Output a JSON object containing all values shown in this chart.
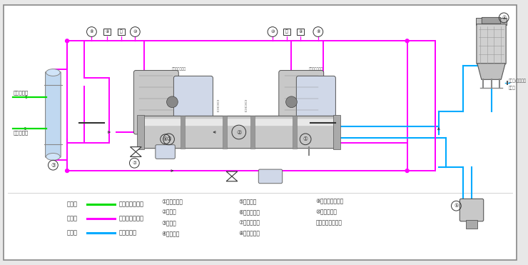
{
  "bg_color": "#e8e8e8",
  "inner_bg": "#ffffff",
  "legend_items": [
    {
      "label_cn": "绿色线",
      "label_desc": "载冷剂循环回路",
      "color": "#00dd00"
    },
    {
      "label_cn": "红色线",
      "label_desc": "制冷剂循环回路",
      "color": "#ff00ff"
    },
    {
      "label_cn": "蓝色线",
      "label_desc": "水循环回路",
      "color": "#00aaff"
    }
  ],
  "numbered_items_col1": [
    {
      "num": "①",
      "text": "螺杆压缩机"
    },
    {
      "num": "②",
      "text": "冷凝器"
    },
    {
      "num": "③",
      "text": "蒸发器"
    },
    {
      "num": "④",
      "text": "冷却水塔"
    }
  ],
  "numbered_items_col2": [
    {
      "num": "⑤",
      "text": "冷却水泵"
    },
    {
      "num": "⑥",
      "text": "干燥过滤器"
    },
    {
      "num": "⑦",
      "text": "供液膨胀阀"
    },
    {
      "num": "⑧",
      "text": "低压压力表"
    }
  ],
  "numbered_items_col3": [
    {
      "num": "⑨",
      "text": "低压压力控制器"
    },
    {
      "num": "⑩",
      "text": "高压压力表"
    },
    {
      "num": "⑪",
      "text": "高压压力控制器"
    }
  ],
  "pink": "#ff00ff",
  "cyan": "#00aaff",
  "green": "#00dd00",
  "gray_light": "#d8d8d8",
  "gray_mid": "#aaaaaa",
  "gray_dark": "#666666",
  "blue_light": "#b8d0ec"
}
